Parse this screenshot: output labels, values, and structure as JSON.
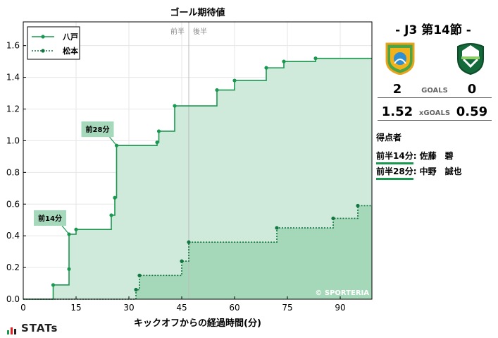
{
  "chart_data": {
    "type": "step",
    "title": "ゴール期待値",
    "xlabel": "キックオフからの経過時間(分)",
    "ylabel": "",
    "xlim": [
      0,
      99
    ],
    "ylim": [
      0,
      1.75
    ],
    "xticks": [
      0,
      15,
      30,
      45,
      60,
      75,
      90
    ],
    "yticks": [
      0.0,
      0.2,
      0.4,
      0.6,
      0.8,
      1.0,
      1.2,
      1.4,
      1.6
    ],
    "grid": true,
    "legend": "top-left",
    "half_labels": {
      "first": "前半",
      "second": "後半"
    },
    "half_time_x": 47,
    "watermark": "© SPORTERIA",
    "series": [
      {
        "name": "八戸",
        "line_style": "solid",
        "color": "#1a9850",
        "fill": "#cfe9db",
        "points": [
          [
            0,
            0
          ],
          [
            8.5,
            0.09
          ],
          [
            13,
            0.19
          ],
          [
            13,
            0.41
          ],
          [
            15,
            0.44
          ],
          [
            25,
            0.53
          ],
          [
            26,
            0.64
          ],
          [
            26.5,
            0.97
          ],
          [
            38,
            0.99
          ],
          [
            38.5,
            1.06
          ],
          [
            43,
            1.22
          ],
          [
            55,
            1.32
          ],
          [
            60,
            1.38
          ],
          [
            69,
            1.46
          ],
          [
            74,
            1.5
          ],
          [
            83,
            1.52
          ],
          [
            99,
            1.52
          ]
        ]
      },
      {
        "name": "松本",
        "line_style": "dotted",
        "color": "#11763f",
        "fill": "#9dd4b3",
        "points": [
          [
            0,
            0
          ],
          [
            32,
            0.06
          ],
          [
            33,
            0.15
          ],
          [
            45,
            0.24
          ],
          [
            47,
            0.36
          ],
          [
            72,
            0.45
          ],
          [
            88,
            0.51
          ],
          [
            95,
            0.59
          ],
          [
            99,
            0.59
          ]
        ]
      }
    ],
    "annotations": [
      {
        "label": "前14分",
        "x": 13,
        "y": 0.41
      },
      {
        "label": "前28分",
        "x": 26.5,
        "y": 0.97
      }
    ]
  },
  "match": {
    "matchday": "-  J3 第14節  -",
    "home_goals": "2",
    "away_goals": "0",
    "goals_label": "GOALS",
    "home_xg": "1.52",
    "away_xg": "0.59",
    "xg_label": "xGOALS",
    "scorers_title": "得点者",
    "scorers": [
      {
        "time": "前半14分",
        "name": ": 佐藤　碧"
      },
      {
        "time": "前半28分",
        "name": ": 中野　誠也"
      }
    ]
  },
  "branding": {
    "logo_text": "STATs"
  },
  "colors": {
    "home": "#1a9850",
    "away": "#11763f",
    "label_bg": "#a6d9bc"
  }
}
